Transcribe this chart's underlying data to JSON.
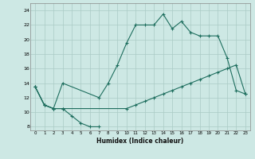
{
  "xlabel": "Humidex (Indice chaleur)",
  "ylabel": "",
  "xlim": [
    -0.5,
    23.5
  ],
  "ylim": [
    7.5,
    25.0
  ],
  "xticks": [
    0,
    1,
    2,
    3,
    4,
    5,
    6,
    7,
    8,
    9,
    10,
    11,
    12,
    13,
    14,
    15,
    16,
    17,
    18,
    19,
    20,
    21,
    22,
    23
  ],
  "yticks": [
    8,
    10,
    12,
    14,
    16,
    18,
    20,
    22,
    24
  ],
  "bg_color": "#cde8e4",
  "grid_color": "#aacbc5",
  "line_color": "#1e6e5e",
  "line1_x": [
    0,
    1,
    2,
    3,
    4,
    5,
    6,
    7
  ],
  "line1_y": [
    13.5,
    11.0,
    10.5,
    10.5,
    9.5,
    8.5,
    8.0,
    8.0
  ],
  "line2_x": [
    0,
    1,
    2,
    3,
    7,
    8,
    9,
    10,
    11,
    12,
    13,
    14,
    15,
    16,
    17,
    18,
    19,
    20,
    21,
    22,
    23
  ],
  "line2_y": [
    13.5,
    11.0,
    10.5,
    14.0,
    12.0,
    14.0,
    16.5,
    19.5,
    22.0,
    22.0,
    22.0,
    23.5,
    21.5,
    22.5,
    21.0,
    20.5,
    20.5,
    20.5,
    17.5,
    13.0,
    12.5
  ],
  "line3_x": [
    0,
    1,
    2,
    3,
    10,
    11,
    12,
    13,
    14,
    15,
    16,
    17,
    18,
    19,
    20,
    21,
    22,
    23
  ],
  "line3_y": [
    13.5,
    11.0,
    10.5,
    10.5,
    10.5,
    11.0,
    11.5,
    12.0,
    12.5,
    13.0,
    13.5,
    14.0,
    14.5,
    15.0,
    15.5,
    16.0,
    16.5,
    12.5
  ]
}
